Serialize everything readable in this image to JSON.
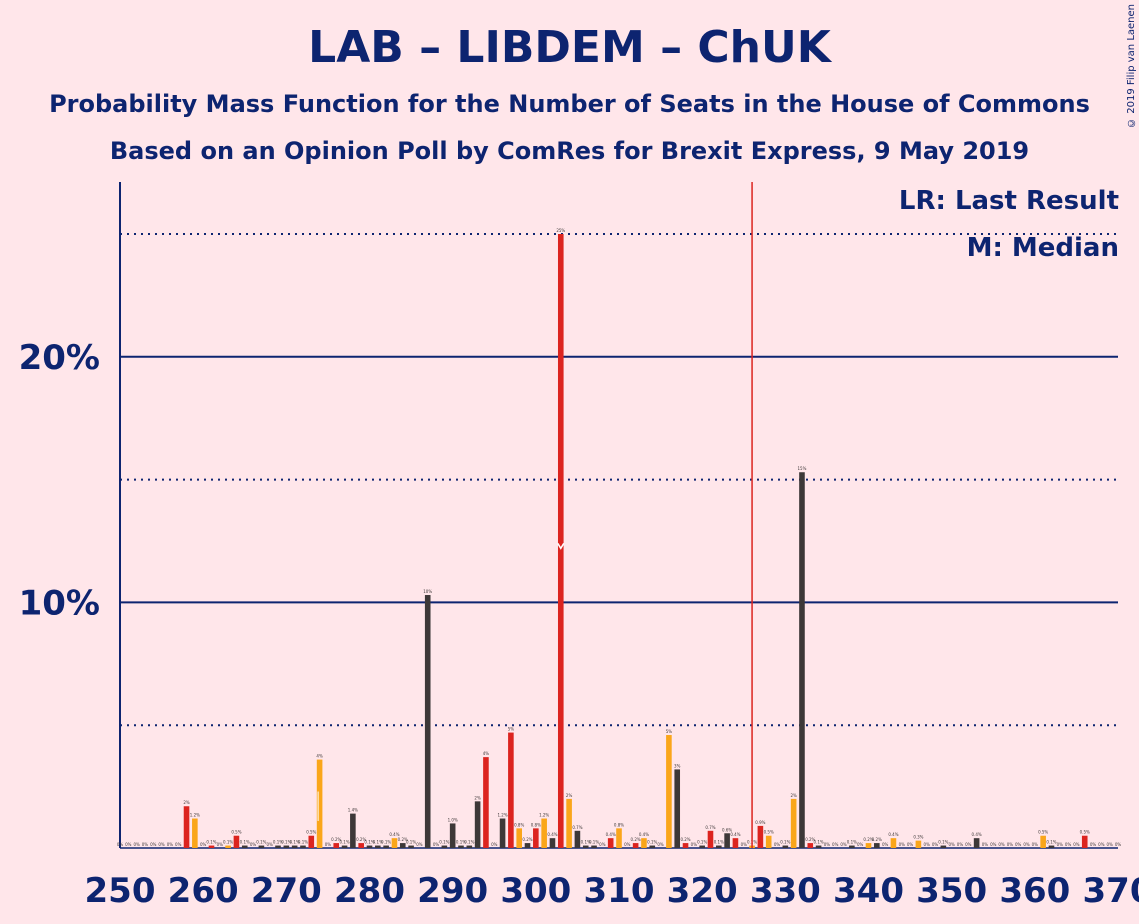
{
  "title": "LAB – LIBDEM – ChUK",
  "subtitle1": "Probability Mass Function for the Number of Seats in the House of Commons",
  "subtitle2": "Based on an Opinion Poll by ComRes for Brexit Express, 9 May 2019",
  "copyright": "© 2019 Filip van Laenen",
  "legend": {
    "lr": "LR: Last Result",
    "m": "M: Median"
  },
  "colors": {
    "background": "#ffe6ea",
    "text": "#0d2470",
    "dark": "#3d3838",
    "red": "#dc241f",
    "orange": "#faa61a"
  },
  "chart_data": {
    "type": "bar",
    "xlim": [
      250,
      370
    ],
    "ylim": [
      0,
      27
    ],
    "x_ticks": [
      "250",
      "260",
      "270",
      "280",
      "290",
      "300",
      "310",
      "320",
      "330",
      "340",
      "350",
      "360",
      "370"
    ],
    "y_ticks": [
      {
        "value": 10,
        "label": "10%"
      },
      {
        "value": 20,
        "label": "20%"
      }
    ],
    "dotted_lines": [
      5,
      15,
      25
    ],
    "last_result": 326,
    "median": 303,
    "bars": [
      {
        "x": 258,
        "value": 1.7,
        "color": "red",
        "label": "2%"
      },
      {
        "x": 259,
        "value": 1.2,
        "color": "orange",
        "label": "1.2%"
      },
      {
        "x": 261,
        "value": 0.1,
        "color": "red",
        "label": "0.1%"
      },
      {
        "x": 263,
        "value": 0.1,
        "color": "orange",
        "label": "0.1%"
      },
      {
        "x": 264,
        "value": 0.5,
        "color": "red",
        "label": "0.5%"
      },
      {
        "x": 265,
        "value": 0.1,
        "color": "dark",
        "label": "0.1%"
      },
      {
        "x": 267,
        "value": 0.1,
        "color": "dark",
        "label": "0.1%"
      },
      {
        "x": 269,
        "value": 0.1,
        "color": "dark",
        "label": "0.1%"
      },
      {
        "x": 270,
        "value": 0.1,
        "color": "dark",
        "label": "0.1%"
      },
      {
        "x": 271,
        "value": 0.1,
        "color": "dark",
        "label": "0.1%"
      },
      {
        "x": 272,
        "value": 0.1,
        "color": "dark",
        "label": "0.1%"
      },
      {
        "x": 273,
        "value": 0.5,
        "color": "red",
        "label": "0.5%"
      },
      {
        "x": 274,
        "value": 3.6,
        "color": "orange",
        "label": "4%"
      },
      {
        "x": 276,
        "value": 0.2,
        "color": "red",
        "label": "0.2%"
      },
      {
        "x": 277,
        "value": 0.1,
        "color": "dark",
        "label": "0.1%"
      },
      {
        "x": 278,
        "value": 1.4,
        "color": "dark",
        "label": "1.4%"
      },
      {
        "x": 279,
        "value": 0.2,
        "color": "red",
        "label": "0.2%"
      },
      {
        "x": 280,
        "value": 0.1,
        "color": "dark",
        "label": "0.1%"
      },
      {
        "x": 281,
        "value": 0.1,
        "color": "dark",
        "label": "0.1%"
      },
      {
        "x": 282,
        "value": 0.1,
        "color": "dark",
        "label": "0.1%"
      },
      {
        "x": 283,
        "value": 0.4,
        "color": "orange",
        "label": "0.4%"
      },
      {
        "x": 284,
        "value": 0.2,
        "color": "dark",
        "label": "0.2%"
      },
      {
        "x": 285,
        "value": 0.1,
        "color": "dark",
        "label": "0.1%"
      },
      {
        "x": 287,
        "value": 10.3,
        "color": "dark",
        "label": "10%"
      },
      {
        "x": 289,
        "value": 0.1,
        "color": "dark",
        "label": "0.1%"
      },
      {
        "x": 290,
        "value": 1.0,
        "color": "dark",
        "label": "1.0%"
      },
      {
        "x": 291,
        "value": 0.1,
        "color": "dark",
        "label": "0.1%"
      },
      {
        "x": 292,
        "value": 0.1,
        "color": "dark",
        "label": "0.1%"
      },
      {
        "x": 293,
        "value": 1.9,
        "color": "dark",
        "label": "2%"
      },
      {
        "x": 294,
        "value": 3.7,
        "color": "red",
        "label": "4%"
      },
      {
        "x": 296,
        "value": 1.2,
        "color": "dark",
        "label": "1.2%"
      },
      {
        "x": 297,
        "value": 4.7,
        "color": "red",
        "label": "5%"
      },
      {
        "x": 298,
        "value": 0.8,
        "color": "orange",
        "label": "0.8%"
      },
      {
        "x": 299,
        "value": 0.2,
        "color": "dark",
        "label": "0.2%"
      },
      {
        "x": 300,
        "value": 0.8,
        "color": "red",
        "label": "0.8%"
      },
      {
        "x": 301,
        "value": 1.2,
        "color": "orange",
        "label": "1.2%"
      },
      {
        "x": 302,
        "value": 0.4,
        "color": "dark",
        "label": "0.4%"
      },
      {
        "x": 303,
        "value": 25.0,
        "color": "red",
        "label": "25%"
      },
      {
        "x": 304,
        "value": 2.0,
        "color": "orange",
        "label": "2%"
      },
      {
        "x": 305,
        "value": 0.7,
        "color": "dark",
        "label": "0.7%"
      },
      {
        "x": 306,
        "value": 0.1,
        "color": "dark",
        "label": "0.1%"
      },
      {
        "x": 307,
        "value": 0.1,
        "color": "dark",
        "label": "0.1%"
      },
      {
        "x": 309,
        "value": 0.4,
        "color": "red",
        "label": "0.4%"
      },
      {
        "x": 310,
        "value": 0.8,
        "color": "orange",
        "label": "0.8%"
      },
      {
        "x": 312,
        "value": 0.2,
        "color": "red",
        "label": "0.2%"
      },
      {
        "x": 313,
        "value": 0.4,
        "color": "orange",
        "label": "0.4%"
      },
      {
        "x": 314,
        "value": 0.1,
        "color": "dark",
        "label": "0.1%"
      },
      {
        "x": 316,
        "value": 4.6,
        "color": "orange",
        "label": "5%"
      },
      {
        "x": 317,
        "value": 3.2,
        "color": "dark",
        "label": "3%"
      },
      {
        "x": 318,
        "value": 0.2,
        "color": "red",
        "label": "0.2%"
      },
      {
        "x": 320,
        "value": 0.1,
        "color": "dark",
        "label": "0.1%"
      },
      {
        "x": 321,
        "value": 0.7,
        "color": "red",
        "label": "0.7%"
      },
      {
        "x": 322,
        "value": 0.1,
        "color": "dark",
        "label": "0.1%"
      },
      {
        "x": 323,
        "value": 0.6,
        "color": "dark",
        "label": "0.6%"
      },
      {
        "x": 324,
        "value": 0.4,
        "color": "red",
        "label": "0.4%"
      },
      {
        "x": 326,
        "value": 0.1,
        "color": "orange",
        "label": "0.1%"
      },
      {
        "x": 327,
        "value": 0.9,
        "color": "red",
        "label": "0.9%"
      },
      {
        "x": 328,
        "value": 0.5,
        "color": "orange",
        "label": "0.5%"
      },
      {
        "x": 330,
        "value": 0.1,
        "color": "dark",
        "label": "0.1%"
      },
      {
        "x": 331,
        "value": 2.0,
        "color": "orange",
        "label": "2%"
      },
      {
        "x": 332,
        "value": 15.3,
        "color": "dark",
        "label": "15%"
      },
      {
        "x": 333,
        "value": 0.2,
        "color": "red",
        "label": "0.2%"
      },
      {
        "x": 334,
        "value": 0.1,
        "color": "dark",
        "label": "0.1%"
      },
      {
        "x": 338,
        "value": 0.1,
        "color": "dark",
        "label": "0.1%"
      },
      {
        "x": 340,
        "value": 0.2,
        "color": "orange",
        "label": "0.2%"
      },
      {
        "x": 341,
        "value": 0.2,
        "color": "dark",
        "label": "0.2%"
      },
      {
        "x": 343,
        "value": 0.4,
        "color": "orange",
        "label": "0.4%"
      },
      {
        "x": 346,
        "value": 0.3,
        "color": "orange",
        "label": "0.3%"
      },
      {
        "x": 349,
        "value": 0.1,
        "color": "dark",
        "label": "0.1%"
      },
      {
        "x": 353,
        "value": 0.4,
        "color": "dark",
        "label": "0.4%"
      },
      {
        "x": 361,
        "value": 0.5,
        "color": "orange",
        "label": "0.5%"
      },
      {
        "x": 362,
        "value": 0.1,
        "color": "dark",
        "label": "0.1%"
      },
      {
        "x": 366,
        "value": 0.5,
        "color": "red",
        "label": "0.5%"
      }
    ]
  }
}
